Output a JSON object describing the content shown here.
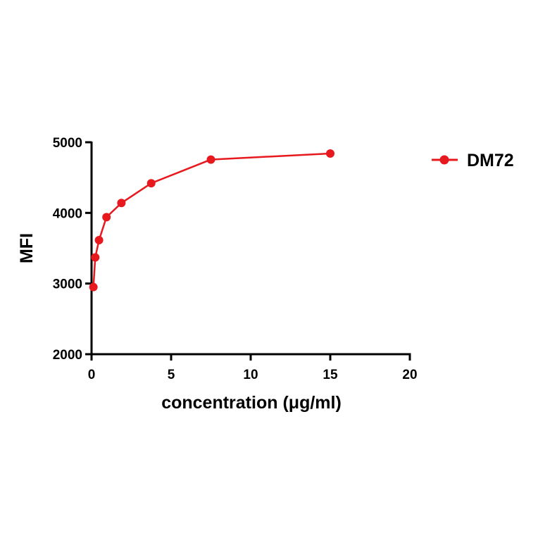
{
  "chart_data": {
    "type": "line",
    "title": "",
    "xlabel": "concentration (μg/ml)",
    "ylabel": "MFI",
    "xlim": [
      0,
      20
    ],
    "ylim": [
      2000,
      5000
    ],
    "x_ticks": [
      0,
      5,
      10,
      15,
      20
    ],
    "x_tick_labels": [
      "0",
      "5",
      "10",
      "15",
      "20"
    ],
    "y_ticks": [
      2000,
      3000,
      4000,
      5000
    ],
    "y_tick_labels": [
      "2000",
      "3000",
      "4000",
      "5000"
    ],
    "grid": false,
    "legend_position": "right",
    "series": [
      {
        "name": "DM72",
        "color": "#e8191e",
        "marker": "circle",
        "x": [
          0.117,
          0.234,
          0.469,
          0.938,
          1.875,
          3.75,
          7.5,
          15
        ],
        "y": [
          2950,
          3370,
          3615,
          3940,
          4140,
          4420,
          4755,
          4840
        ]
      }
    ]
  }
}
